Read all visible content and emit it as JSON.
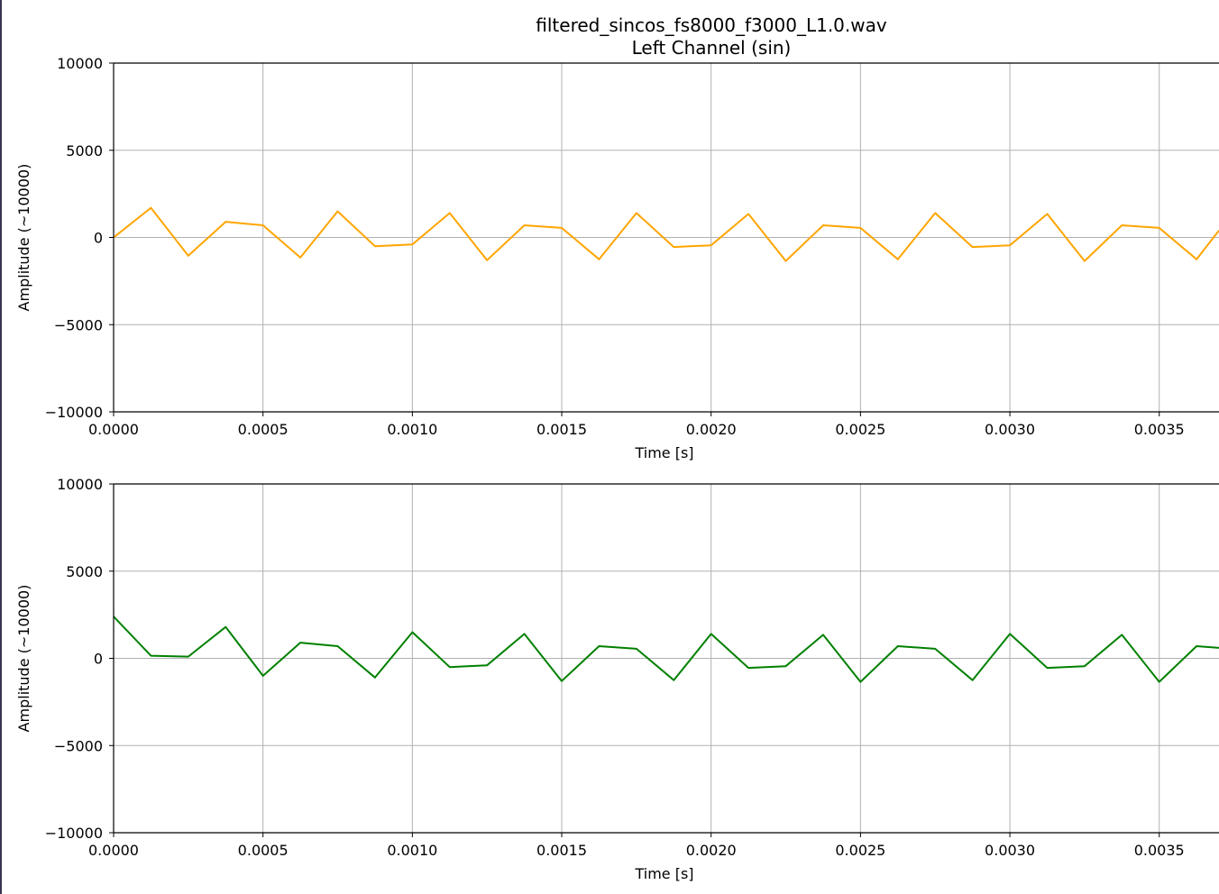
{
  "figure": {
    "title_line1": "filtered_sincos_fs8000_f3000_L1.0.wav",
    "title_line2": "Left Channel (sin)"
  },
  "chart_data": [
    {
      "type": "line",
      "title": "filtered_sincos_fs8000_f3000_L1.0.wav\nLeft Channel (sin)",
      "xlabel": "Time [s]",
      "ylabel": "Amplitude (~10000)",
      "xlim": [
        0,
        0.0037
      ],
      "ylim": [
        -10000,
        10000
      ],
      "grid": true,
      "x_ticks": [
        "0.0000",
        "0.0005",
        "0.0010",
        "0.0015",
        "0.0020",
        "0.0025",
        "0.0030",
        "0.0035"
      ],
      "y_ticks": [
        "10000",
        "5000",
        "0",
        "−5000",
        "−10000"
      ],
      "color": "#ffa500",
      "series": [
        {
          "x": [
            0,
            0.000125,
            0.00025,
            0.000375,
            0.0005,
            0.000625,
            0.00075,
            0.000875,
            0.001,
            0.001125,
            0.00125,
            0.001375,
            0.0015,
            0.001625,
            0.00175,
            0.001875,
            0.002,
            0.002125,
            0.00225,
            0.002375,
            0.0025,
            0.002625,
            0.00275,
            0.002875,
            0.003,
            0.003125,
            0.00325,
            0.003375,
            0.0035,
            0.003625,
            0.0037
          ],
          "values": [
            0,
            1700,
            -1050,
            900,
            700,
            -1150,
            1500,
            -500,
            -400,
            1400,
            -1300,
            700,
            550,
            -1250,
            1400,
            -550,
            -450,
            1350,
            -1350,
            700,
            550,
            -1250,
            1400,
            -550,
            -450,
            1350,
            -1350,
            700,
            550,
            -1250,
            400
          ]
        }
      ]
    },
    {
      "type": "line",
      "title": "",
      "xlabel": "Time [s]",
      "ylabel": "Amplitude (~10000)",
      "xlim": [
        0,
        0.0037
      ],
      "ylim": [
        -10000,
        10000
      ],
      "grid": true,
      "x_ticks": [
        "0.0000",
        "0.0005",
        "0.0010",
        "0.0015",
        "0.0020",
        "0.0025",
        "0.0030",
        "0.0035"
      ],
      "y_ticks": [
        "10000",
        "5000",
        "0",
        "−5000",
        "−10000"
      ],
      "color": "#008000",
      "series": [
        {
          "x": [
            0,
            0.000125,
            0.00025,
            0.000375,
            0.0005,
            0.000625,
            0.00075,
            0.000875,
            0.001,
            0.001125,
            0.00125,
            0.001375,
            0.0015,
            0.001625,
            0.00175,
            0.001875,
            0.002,
            0.002125,
            0.00225,
            0.002375,
            0.0025,
            0.002625,
            0.00275,
            0.002875,
            0.003,
            0.003125,
            0.00325,
            0.003375,
            0.0035,
            0.003625,
            0.0037
          ],
          "values": [
            2400,
            150,
            100,
            1800,
            -1000,
            900,
            700,
            -1100,
            1500,
            -500,
            -400,
            1400,
            -1300,
            700,
            550,
            -1250,
            1400,
            -550,
            -450,
            1350,
            -1350,
            700,
            550,
            -1250,
            1400,
            -550,
            -450,
            1350,
            -1350,
            700,
            600
          ]
        }
      ]
    }
  ]
}
